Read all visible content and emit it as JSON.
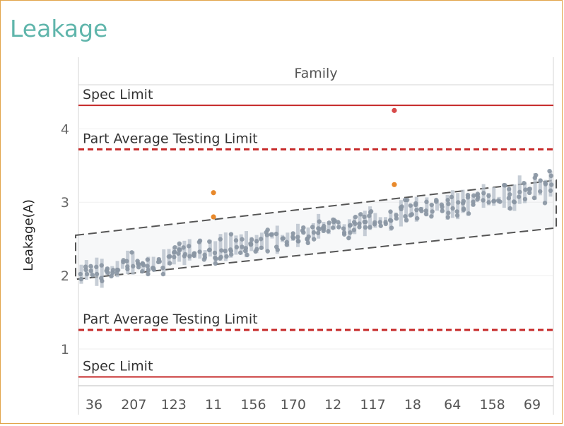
{
  "page_title": "Leakage",
  "chart_data": {
    "type": "box",
    "title": "Leakage",
    "column_header": "Family",
    "ylabel": "Leakage(A)",
    "ylim": [
      0.5,
      4.6
    ],
    "y_ticks": [
      1,
      2,
      3,
      4
    ],
    "x_tick_labels": [
      "36",
      "207",
      "123",
      "11",
      "156",
      "170",
      "12",
      "117",
      "18",
      "64",
      "158",
      "69"
    ],
    "reference_lines": [
      {
        "label": "Spec Limit",
        "value": 4.32,
        "style": "solid",
        "color": "#c62828"
      },
      {
        "label": "Part Average Testing Limit",
        "value": 3.72,
        "style": "dashed",
        "color": "#c62828"
      },
      {
        "label": "Part Average Testing Limit",
        "value": 1.26,
        "style": "dashed",
        "color": "#c62828"
      },
      {
        "label": "Spec Limit",
        "value": 0.62,
        "style": "solid",
        "color": "#c62828"
      }
    ],
    "trend_band": {
      "start": [
        1.95,
        2.55
      ],
      "end": [
        2.65,
        3.3
      ],
      "style": "dashed"
    },
    "trend_start": 2.02,
    "trend_end": 3.2,
    "outliers": [
      {
        "family": "11",
        "value": 3.13,
        "color": "#e8892b"
      },
      {
        "family": "11",
        "value": 2.8,
        "color": "#e8892b"
      },
      {
        "family": "18",
        "value": 4.25,
        "color": "#d84a4a"
      },
      {
        "family": "18",
        "value": 3.24,
        "color": "#e8892b"
      }
    ],
    "colors": {
      "points": "#8a96a3",
      "box": "#b4bec8",
      "outlier": "#e8892b",
      "limit": "#c62828"
    }
  }
}
